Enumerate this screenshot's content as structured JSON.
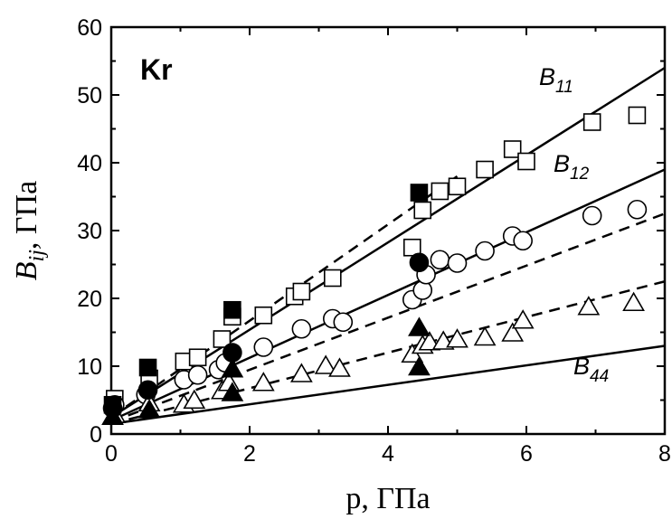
{
  "chart_data": {
    "type": "scatter",
    "panel_label": "Kr",
    "xlabel": "p, ГПа",
    "ylabel_main": "B",
    "ylabel_sub": "ij",
    "ylabel_unit": ", ГПа",
    "xlim": [
      0,
      8
    ],
    "ylim": [
      0,
      60
    ],
    "xticks": [
      0,
      2,
      4,
      6,
      8
    ],
    "yticks": [
      0,
      10,
      20,
      30,
      40,
      50,
      60
    ],
    "grid": false,
    "series": [
      {
        "name": "B11",
        "label_main": "B",
        "label_sub": "11",
        "solid_line": [
          [
            0,
            2.5
          ],
          [
            8,
            54
          ]
        ],
        "dashed_line": [
          [
            0,
            2.5
          ],
          [
            5,
            38
          ]
        ],
        "filled_markers": "square",
        "filled": [
          [
            0.02,
            4.3
          ],
          [
            0.53,
            9.8
          ],
          [
            1.75,
            18.3
          ],
          [
            4.45,
            35.6
          ]
        ],
        "open_markers": "square",
        "open": [
          [
            0.05,
            5.2
          ],
          [
            0.55,
            8.2
          ],
          [
            1.05,
            10.7
          ],
          [
            1.25,
            11.3
          ],
          [
            1.6,
            14.0
          ],
          [
            1.75,
            17.3
          ],
          [
            2.2,
            17.5
          ],
          [
            2.65,
            20.3
          ],
          [
            2.75,
            21.0
          ],
          [
            3.2,
            23.0
          ],
          [
            4.35,
            27.5
          ],
          [
            4.5,
            33.0
          ],
          [
            4.75,
            35.8
          ],
          [
            5.0,
            36.5
          ],
          [
            5.4,
            39.0
          ],
          [
            5.8,
            42.0
          ],
          [
            6.0,
            40.2
          ],
          [
            6.95,
            46.0
          ],
          [
            7.6,
            47.0
          ]
        ]
      },
      {
        "name": "B12",
        "label_main": "B",
        "label_sub": "12",
        "solid_line": [
          [
            0,
            2.0
          ],
          [
            8,
            39.0
          ]
        ],
        "dashed_line": [
          [
            0,
            1.8
          ],
          [
            8,
            32.5
          ]
        ],
        "filled_markers": "circle",
        "filled": [
          [
            0.02,
            3.8
          ],
          [
            0.53,
            6.5
          ],
          [
            1.75,
            12.0
          ],
          [
            4.45,
            25.3
          ]
        ],
        "open_markers": "circle",
        "open": [
          [
            0.05,
            4.3
          ],
          [
            0.5,
            5.8
          ],
          [
            1.05,
            8.0
          ],
          [
            1.25,
            8.7
          ],
          [
            1.55,
            9.5
          ],
          [
            1.65,
            10.5
          ],
          [
            2.2,
            12.8
          ],
          [
            2.75,
            15.5
          ],
          [
            3.2,
            17.0
          ],
          [
            3.35,
            16.5
          ],
          [
            4.35,
            19.8
          ],
          [
            4.5,
            21.2
          ],
          [
            4.55,
            23.5
          ],
          [
            4.75,
            25.7
          ],
          [
            5.0,
            25.2
          ],
          [
            5.4,
            27.0
          ],
          [
            5.8,
            29.2
          ],
          [
            5.95,
            28.5
          ],
          [
            6.95,
            32.2
          ],
          [
            7.6,
            33.1
          ]
        ]
      },
      {
        "name": "B44",
        "label_main": "B",
        "label_sub": "44",
        "solid_line": [
          [
            0,
            1.5
          ],
          [
            8,
            13.0
          ]
        ],
        "dashed_line": [
          [
            0,
            1.5
          ],
          [
            8,
            22.5
          ]
        ],
        "filled_markers": "triangle",
        "filled": [
          [
            0.02,
            2.5
          ],
          [
            0.55,
            3.5
          ],
          [
            1.75,
            6.0
          ],
          [
            1.75,
            9.5
          ],
          [
            4.45,
            9.8
          ],
          [
            4.45,
            15.6
          ]
        ],
        "open_markers": "triangle",
        "open": [
          [
            0.05,
            2.8
          ],
          [
            0.55,
            4.5
          ],
          [
            1.05,
            4.3
          ],
          [
            1.2,
            4.9
          ],
          [
            1.6,
            6.3
          ],
          [
            1.7,
            7.5
          ],
          [
            2.2,
            7.5
          ],
          [
            2.75,
            8.8
          ],
          [
            3.1,
            10.0
          ],
          [
            3.3,
            9.6
          ],
          [
            4.35,
            11.7
          ],
          [
            4.5,
            13.0
          ],
          [
            4.6,
            13.5
          ],
          [
            4.8,
            13.6
          ],
          [
            5.0,
            13.9
          ],
          [
            5.4,
            14.2
          ],
          [
            5.8,
            14.8
          ],
          [
            5.95,
            16.7
          ],
          [
            6.9,
            18.7
          ],
          [
            7.55,
            19.3
          ]
        ]
      }
    ]
  }
}
